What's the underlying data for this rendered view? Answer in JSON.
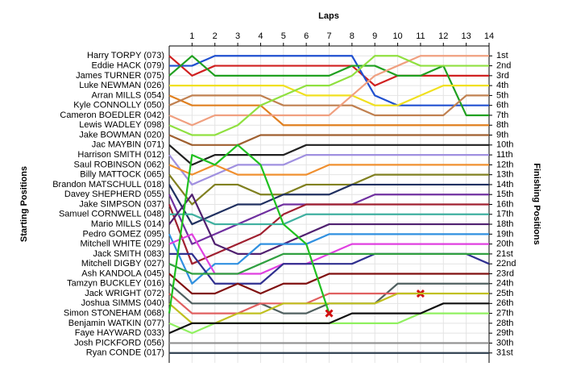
{
  "chart_data": {
    "type": "line",
    "title": "Laps",
    "ylabel": "Starting Positions",
    "y2label": "Finishing Positions",
    "x": [
      0,
      1,
      2,
      3,
      4,
      5,
      6,
      7,
      8,
      9,
      10,
      11,
      12,
      13,
      14
    ],
    "xlim": [
      0,
      14
    ],
    "xticks": [
      1,
      2,
      3,
      4,
      5,
      6,
      7,
      8,
      9,
      10,
      11,
      12,
      13,
      14
    ],
    "ylim": [
      0,
      32
    ],
    "inverted": true,
    "grid": true,
    "y2lim": [
      0,
      32
    ],
    "y2ticks": [
      {
        "value": 1,
        "label": "1st"
      },
      {
        "value": 2,
        "label": "2nd"
      },
      {
        "value": 3,
        "label": "3rd"
      },
      {
        "value": 4,
        "label": "4th"
      },
      {
        "value": 5,
        "label": "5th"
      },
      {
        "value": 6,
        "label": "6th"
      },
      {
        "value": 7,
        "label": "7th"
      },
      {
        "value": 8,
        "label": "8th"
      },
      {
        "value": 9,
        "label": "9th"
      },
      {
        "value": 10,
        "label": "10th"
      },
      {
        "value": 11,
        "label": "11th"
      },
      {
        "value": 12,
        "label": "12th"
      },
      {
        "value": 13,
        "label": "13th"
      },
      {
        "value": 14,
        "label": "14th"
      },
      {
        "value": 15,
        "label": "15th"
      },
      {
        "value": 16,
        "label": "16th"
      },
      {
        "value": 17,
        "label": "17th"
      },
      {
        "value": 18,
        "label": "18th"
      },
      {
        "value": 19,
        "label": "19th"
      },
      {
        "value": 20,
        "label": "20th"
      },
      {
        "value": 21,
        "label": "21st"
      },
      {
        "value": 22,
        "label": "22nd"
      },
      {
        "value": 23,
        "label": "23rd"
      },
      {
        "value": 24,
        "label": "24th"
      },
      {
        "value": 25,
        "label": "25th"
      },
      {
        "value": 26,
        "label": "26th"
      },
      {
        "value": 27,
        "label": "27th"
      },
      {
        "value": 28,
        "label": "28th"
      },
      {
        "value": 29,
        "label": "29th"
      },
      {
        "value": 30,
        "label": "30th"
      },
      {
        "value": 31,
        "label": "31st"
      }
    ],
    "series": [
      {
        "name": "Harry TORPY (073)",
        "color": "#d02020",
        "values": [
          1,
          3,
          2,
          2,
          2,
          2,
          2,
          2,
          2,
          4,
          3,
          3,
          3,
          3,
          3
        ]
      },
      {
        "name": "Eddie HACK (079)",
        "color": "#2050d0",
        "values": [
          2,
          2,
          1,
          1,
          1,
          1,
          1,
          1,
          1,
          5,
          6,
          6,
          6,
          6,
          6
        ]
      },
      {
        "name": "James TURNER (075)",
        "color": "#20a020",
        "values": [
          3,
          1,
          3,
          3,
          3,
          3,
          3,
          3,
          2,
          2,
          3,
          3,
          2,
          7,
          7
        ]
      },
      {
        "name": "Luke NEWMAN (026)",
        "color": "#f0e020",
        "values": [
          4,
          4,
          4,
          4,
          4,
          4,
          5,
          5,
          5,
          6,
          6,
          5,
          4,
          4,
          4
        ]
      },
      {
        "name": "Arran MILLS (054)",
        "color": "#e08020",
        "values": [
          5,
          6,
          6,
          6,
          6,
          8,
          8,
          8,
          8,
          8,
          8,
          8,
          8,
          8,
          8
        ]
      },
      {
        "name": "Kyle CONNOLLY (050)",
        "color": "#c08050",
        "values": [
          6,
          5,
          5,
          5,
          5,
          6,
          6,
          6,
          6,
          7,
          7,
          7,
          7,
          5,
          5
        ]
      },
      {
        "name": "Cameron BOEDLER (042)",
        "color": "#f0a080",
        "values": [
          7,
          8,
          7,
          7,
          7,
          7,
          7,
          7,
          5,
          3,
          2,
          1,
          1,
          1,
          1
        ]
      },
      {
        "name": "Lewis WADLEY (098)",
        "color": "#90e040",
        "values": [
          8,
          9,
          9,
          8,
          6,
          5,
          4,
          4,
          3,
          1,
          1,
          2,
          2,
          2,
          2
        ]
      },
      {
        "name": "Jake BOWMAN (020)",
        "color": "#a06030",
        "values": [
          9,
          10,
          10,
          10,
          9,
          9,
          9,
          9,
          9,
          9,
          9,
          9,
          9,
          9,
          9
        ]
      },
      {
        "name": "Jac MAYBIN (071)",
        "color": "#202020",
        "values": [
          10,
          12,
          11,
          11,
          11,
          11,
          10,
          10,
          10,
          10,
          10,
          10,
          10,
          10,
          10
        ]
      },
      {
        "name": "Harrison SMITH (012)",
        "color": "#a090e0",
        "values": [
          11,
          14,
          13,
          12,
          12,
          12,
          11,
          11,
          11,
          11,
          11,
          11,
          11,
          11,
          11
        ]
      },
      {
        "name": "Saul ROBINSON (062)",
        "color": "#f09030",
        "values": [
          12,
          13,
          12,
          13,
          13,
          13,
          13,
          12,
          12,
          12,
          12,
          12,
          12,
          12,
          12
        ]
      },
      {
        "name": "Billy MATTOCK (065)",
        "color": "#808020",
        "values": [
          13,
          16,
          14,
          14,
          15,
          15,
          14,
          14,
          14,
          13,
          13,
          13,
          13,
          13,
          13
        ]
      },
      {
        "name": "Brandon MATSCHULL (018)",
        "color": "#203060",
        "values": [
          14,
          18,
          17,
          16,
          16,
          15,
          15,
          15,
          14,
          14,
          14,
          14,
          14,
          14,
          14
        ]
      },
      {
        "name": "Davey SHEPHERD (055)",
        "color": "#7030a0",
        "values": [
          15,
          20,
          19,
          18,
          17,
          16,
          16,
          16,
          16,
          15,
          15,
          15,
          15,
          15,
          15
        ]
      },
      {
        "name": "Jake SIMPSON (037)",
        "color": "#a02030",
        "values": [
          16,
          22,
          21,
          20,
          19,
          17,
          16,
          16,
          16,
          16,
          16,
          16,
          16,
          16,
          16
        ]
      },
      {
        "name": "Samuel CORNWELL (048)",
        "color": "#40b0a0",
        "values": [
          17,
          17,
          18,
          18,
          18,
          18,
          17,
          17,
          17,
          17,
          17,
          17,
          17,
          17,
          17
        ]
      },
      {
        "name": "Mario MILLS (014)",
        "color": "#502070",
        "values": [
          18,
          15,
          20,
          21,
          21,
          20,
          19,
          18,
          18,
          18,
          18,
          18,
          18,
          18,
          18
        ]
      },
      {
        "name": "Pedro GOMEZ (095)",
        "color": "#3090e0",
        "values": [
          19,
          24,
          22,
          22,
          20,
          20,
          20,
          19,
          19,
          19,
          19,
          19,
          19,
          19,
          19
        ]
      },
      {
        "name": "Mitchell WHITE (029)",
        "color": "#e040e0",
        "values": [
          20,
          19,
          23,
          23,
          23,
          22,
          22,
          21,
          20,
          20,
          20,
          20,
          20,
          20,
          20
        ]
      },
      {
        "name": "Jack SMITH (083)",
        "color": "#303090",
        "values": [
          21,
          21,
          24,
          24,
          24,
          22,
          22,
          22,
          22,
          21,
          21,
          21,
          21,
          21,
          22
        ]
      },
      {
        "name": "Mitchell DIGBY (027)",
        "color": "#30a040",
        "values": [
          22,
          23,
          23,
          23,
          22,
          21,
          21,
          21,
          21,
          21,
          21,
          21,
          21,
          21,
          21
        ]
      },
      {
        "name": "Ash KANDOLA (045)",
        "color": "#801010",
        "values": [
          23,
          25,
          25,
          24,
          25,
          24,
          24,
          23,
          23,
          23,
          23,
          23,
          23,
          23,
          23
        ]
      },
      {
        "name": "Tamzyn BUCKLEY (016)",
        "color": "#506060",
        "values": [
          24,
          26,
          26,
          26,
          26,
          27,
          27,
          26,
          26,
          26,
          24,
          24,
          24,
          24,
          24
        ]
      },
      {
        "name": "Jack WRIGHT (072)",
        "color": "#e06060",
        "retired": true,
        "values": [
          25,
          27,
          27,
          27,
          26,
          26,
          26,
          25,
          25,
          25,
          25,
          25,
          null,
          null,
          null
        ]
      },
      {
        "name": "Joshua SIMMS (040)",
        "color": "#c0c020",
        "values": [
          26,
          28,
          28,
          27,
          27,
          26,
          26,
          26,
          26,
          26,
          25,
          25,
          25,
          25,
          25
        ]
      },
      {
        "name": "Simon STONEHAM (068)",
        "color": "#20c020",
        "retired": true,
        "values": [
          27,
          11,
          12,
          10,
          12,
          18,
          20,
          27,
          null,
          null,
          null,
          null,
          null,
          null,
          null
        ]
      },
      {
        "name": "Benjamin WATKIN (077)",
        "color": "#90f060",
        "values": [
          28,
          29,
          28,
          28,
          28,
          28,
          28,
          28,
          28,
          28,
          28,
          27,
          27,
          27,
          27
        ]
      },
      {
        "name": "Faye HAYWARD (033)",
        "color": "#101010",
        "values": [
          29,
          28,
          28,
          28,
          28,
          28,
          28,
          28,
          27,
          27,
          27,
          27,
          26,
          26,
          26
        ]
      },
      {
        "name": "Josh PICKFORD (056)",
        "color": "#909090",
        "values": [
          30,
          30,
          30,
          30,
          30,
          30,
          30,
          30,
          30,
          30,
          30,
          30,
          30,
          30,
          30
        ]
      },
      {
        "name": "Ryan CONDE (017)",
        "color": "#304050",
        "values": [
          31,
          31,
          31,
          31,
          31,
          31,
          31,
          31,
          31,
          31,
          31,
          31,
          31,
          31,
          31
        ]
      }
    ]
  }
}
